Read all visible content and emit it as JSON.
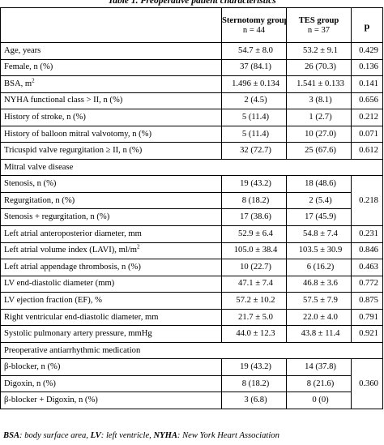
{
  "caption": "Table 1. Preoperative patient characteristics",
  "header": {
    "col_sternotomy": "Sternotomy group",
    "col_sternotomy_n": "n = 44",
    "col_tes": "TES group",
    "col_tes_n": "n = 37",
    "col_p": "p"
  },
  "rows": [
    {
      "label": "Age, years",
      "a": "54.7 ± 8.0",
      "b": "53.2 ± 9.1",
      "p": "0.429"
    },
    {
      "label": "Female, n (%)",
      "a": "37 (84.1)",
      "b": "26 (70.3)",
      "p": "0.136"
    },
    {
      "label": "BSA, m",
      "sup": "2",
      "a": "1.496 ± 0.134",
      "b": "1.541 ± 0.133",
      "p": "0.141"
    },
    {
      "label": "NYHA functional class > II, n (%)",
      "a": "2 (4.5)",
      "b": "3 (8.1)",
      "p": "0.656"
    },
    {
      "label": "History of stroke, n (%)",
      "a": "5 (11.4)",
      "b": "1 (2.7)",
      "p": "0.212"
    },
    {
      "label": "History of balloon mitral valvotomy, n (%)",
      "a": "5 (11.4)",
      "b": "10 (27.0)",
      "p": "0.071"
    },
    {
      "label": "Tricuspid valve regurgitation ≥ II, n (%)",
      "a": "32 (72.7)",
      "b": "25 (67.6)",
      "p": "0.612"
    },
    {
      "label": "Mitral valve disease",
      "a": "",
      "b": "",
      "p": ""
    },
    {
      "label": "Stenosis, n (%)",
      "a": "19 (43.2)",
      "b": "18 (48.6)",
      "p": ""
    },
    {
      "label": "Regurgitation, n (%)",
      "a": "8 (18.2)",
      "b": "2 (5.4)",
      "p": "0.218"
    },
    {
      "label": "Stenosis + regurgitation, n (%)",
      "a": "17 (38.6)",
      "b": "17 (45.9)",
      "p": ""
    },
    {
      "label": "Left atrial anteroposterior diameter, mm",
      "a": "52.9 ± 6.4",
      "b": "54.8 ± 7.4",
      "p": "0.231"
    },
    {
      "label": "Left atrial volume index (LAVI), ml/m",
      "sup": "2",
      "a": "105.0 ± 38.4",
      "b": "103.5 ± 30.9",
      "p": "0.846"
    },
    {
      "label": "Left atrial appendage thrombosis, n (%)",
      "a": "10 (22.7)",
      "b": "6 (16.2)",
      "p": "0.463"
    },
    {
      "label": "LV end-diastolic diameter (mm)",
      "a": "47.1 ± 7.4",
      "b": "46.8 ± 3.6",
      "p": "0.772"
    },
    {
      "label": "LV ejection fraction (EF), %",
      "a": "57.2 ± 10.2",
      "b": "57.5 ± 7.9",
      "p": "0.875"
    },
    {
      "label": "Right ventricular end-diastolic diameter, mm",
      "a": "21.7 ± 5.0",
      "b": "22.0 ± 4.0",
      "p": "0.791"
    },
    {
      "label": "Systolic pulmonary artery pressure, mmHg",
      "a": "44.0 ± 12.3",
      "b": "43.8 ± 11.4",
      "p": "0.921"
    },
    {
      "label": "Preoperative antiarrhythmic medication",
      "a": "",
      "b": "",
      "p": ""
    },
    {
      "label": "β-blocker, n (%)",
      "a": "19 (43.2)",
      "b": "14 (37.8)",
      "p": ""
    },
    {
      "label": "Digoxin, n (%)",
      "a": "8 (18.2)",
      "b": "8 (21.6)",
      "p": "0.360"
    },
    {
      "label": "β-blocker + Digoxin, n (%)",
      "a": "3 (6.8)",
      "b": "0 (0)",
      "p": ""
    }
  ],
  "footnote": {
    "bsa_abbr": "BSA",
    "bsa_text": ": body surface area, ",
    "lv_abbr": "LV",
    "lv_text": ": left ventricle, ",
    "nyha_abbr": "NYHA",
    "nyha_text": ": New York Heart Association"
  }
}
